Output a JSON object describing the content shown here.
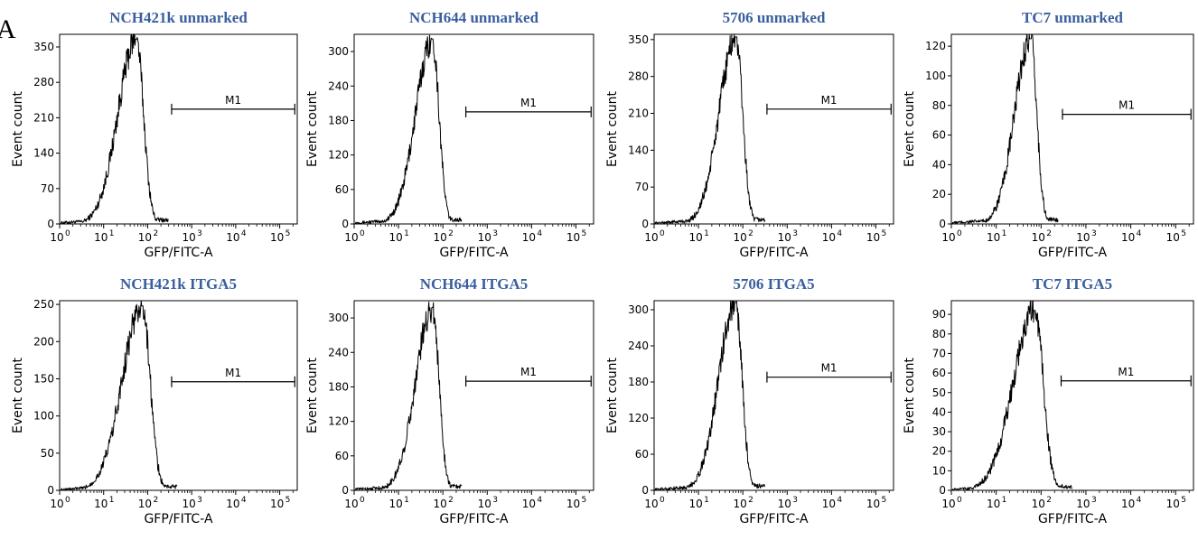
{
  "panel_letter": "A",
  "chart_data": [
    {
      "type": "line",
      "title": "NCH421k unmarked",
      "xlabel": "GFP/FITC-A",
      "ylabel": "Event count",
      "xscale": "log",
      "xlim": [
        1,
        250000
      ],
      "ylim": [
        0,
        375
      ],
      "y_ticks": [
        0,
        70,
        140,
        210,
        280,
        350
      ],
      "x_ticks": [
        1,
        10,
        100,
        1000,
        10000,
        100000
      ],
      "peak_x": 55,
      "peak_y": 365,
      "width_decades": 0.33,
      "gate": {
        "label": "M1",
        "x_start": 350,
        "x_end": 220000,
        "y": 227
      }
    },
    {
      "type": "line",
      "title": "NCH644 unmarked",
      "xlabel": "GFP/FITC-A",
      "ylabel": "Event count",
      "xscale": "log",
      "xlim": [
        1,
        250000
      ],
      "ylim": [
        0,
        330
      ],
      "y_ticks": [
        0,
        60,
        120,
        180,
        240,
        300
      ],
      "x_ticks": [
        1,
        10,
        100,
        1000,
        10000,
        100000
      ],
      "peak_x": 58,
      "peak_y": 322,
      "width_decades": 0.3,
      "gate": {
        "label": "M1",
        "x_start": 330,
        "x_end": 220000,
        "y": 195
      }
    },
    {
      "type": "line",
      "title": "5706 unmarked",
      "xlabel": "GFP/FITC-A",
      "ylabel": "Event count",
      "xscale": "log",
      "xlim": [
        1,
        250000
      ],
      "ylim": [
        0,
        360
      ],
      "y_ticks": [
        0,
        70,
        140,
        210,
        280,
        350
      ],
      "x_ticks": [
        1,
        10,
        100,
        1000,
        10000,
        100000
      ],
      "peak_x": 70,
      "peak_y": 355,
      "width_decades": 0.3,
      "gate": {
        "label": "M1",
        "x_start": 350,
        "x_end": 220000,
        "y": 218
      }
    },
    {
      "type": "line",
      "title": "TC7 unmarked",
      "xlabel": "GFP/FITC-A",
      "ylabel": "Event count",
      "xscale": "log",
      "xlim": [
        1,
        250000
      ],
      "ylim": [
        0,
        128
      ],
      "y_ticks": [
        0,
        20,
        40,
        60,
        80,
        100,
        120
      ],
      "x_ticks": [
        1,
        10,
        100,
        1000,
        10000,
        100000
      ],
      "peak_x": 58,
      "peak_y": 125,
      "width_decades": 0.28,
      "gate": {
        "label": "M1",
        "x_start": 300,
        "x_end": 220000,
        "y": 74
      }
    },
    {
      "type": "line",
      "title": "NCH421k ITGA5",
      "xlabel": "GFP/FITC-A",
      "ylabel": "Event count",
      "xscale": "log",
      "xlim": [
        1,
        250000
      ],
      "ylim": [
        0,
        255
      ],
      "y_ticks": [
        0,
        50,
        100,
        150,
        200,
        250
      ],
      "x_ticks": [
        1,
        10,
        100,
        1000,
        10000,
        100000
      ],
      "peak_x": 75,
      "peak_y": 248,
      "width_decades": 0.36,
      "gate": {
        "label": "M1",
        "x_start": 350,
        "x_end": 220000,
        "y": 146
      }
    },
    {
      "type": "line",
      "title": "NCH644 ITGA5",
      "xlabel": "GFP/FITC-A",
      "ylabel": "Event count",
      "xscale": "log",
      "xlim": [
        1,
        250000
      ],
      "ylim": [
        0,
        330
      ],
      "y_ticks": [
        0,
        60,
        120,
        180,
        240,
        300
      ],
      "x_ticks": [
        1,
        10,
        100,
        1000,
        10000,
        100000
      ],
      "peak_x": 58,
      "peak_y": 318,
      "width_decades": 0.3,
      "gate": {
        "label": "M1",
        "x_start": 330,
        "x_end": 220000,
        "y": 190
      }
    },
    {
      "type": "line",
      "title": "5706 ITGA5",
      "xlabel": "GFP/FITC-A",
      "ylabel": "Event count",
      "xscale": "log",
      "xlim": [
        1,
        250000
      ],
      "ylim": [
        0,
        315
      ],
      "y_ticks": [
        0,
        60,
        120,
        180,
        240,
        300
      ],
      "x_ticks": [
        1,
        10,
        100,
        1000,
        10000,
        100000
      ],
      "peak_x": 68,
      "peak_y": 312,
      "width_decades": 0.3,
      "gate": {
        "label": "M1",
        "x_start": 350,
        "x_end": 220000,
        "y": 188
      }
    },
    {
      "type": "line",
      "title": "TC7 ITGA5",
      "xlabel": "GFP/FITC-A",
      "ylabel": "Event count",
      "xscale": "log",
      "xlim": [
        1,
        250000
      ],
      "ylim": [
        0,
        97
      ],
      "y_ticks": [
        0,
        10,
        20,
        30,
        40,
        50,
        60,
        70,
        80,
        90
      ],
      "x_ticks": [
        1,
        10,
        100,
        1000,
        10000,
        100000
      ],
      "peak_x": 72,
      "peak_y": 92,
      "width_decades": 0.38,
      "gate": {
        "label": "M1",
        "x_start": 280,
        "x_end": 220000,
        "y": 56
      }
    }
  ]
}
